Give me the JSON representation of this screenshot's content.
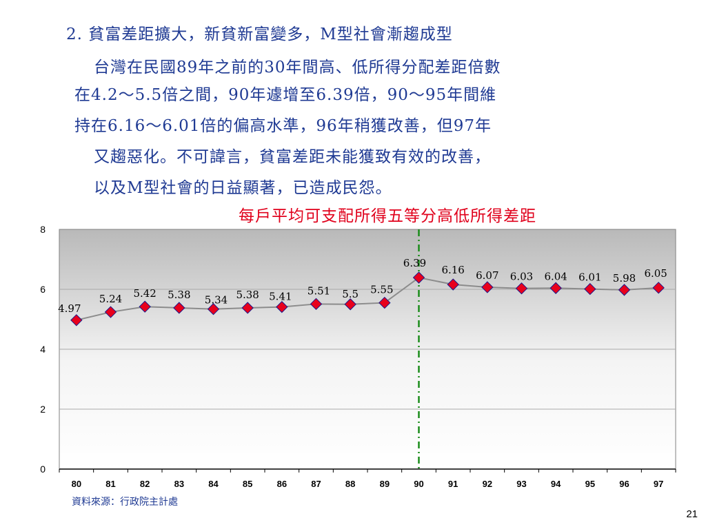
{
  "heading": {
    "line1": "2. 貧富差距擴大，新貧新富變多，M型社會漸趨成型",
    "line2": "台灣在民國89年之前的30年間高、低所得分配差距倍數",
    "line3": "在4.2～5.5倍之間，90年遽增至6.39倍，90～95年間維",
    "line4": "持在6.16～6.01倍的偏高水準，96年稍獲改善，但97年",
    "line5": "又趨惡化。不可諱言，貧富差距未能獲致有效的改善，",
    "line6": "以及M型社會的日益顯著，已造成民怨。"
  },
  "chart_data": {
    "type": "line",
    "title": "每戶平均可支配所得五等分高低所得差距",
    "categories": [
      "80",
      "81",
      "82",
      "83",
      "84",
      "85",
      "86",
      "87",
      "88",
      "89",
      "90",
      "91",
      "92",
      "93",
      "94",
      "95",
      "96",
      "97"
    ],
    "series": [
      {
        "values": [
          4.97,
          5.24,
          5.42,
          5.38,
          5.34,
          5.38,
          5.41,
          5.51,
          5.5,
          5.55,
          6.39,
          6.16,
          6.07,
          6.03,
          6.04,
          6.01,
          5.98,
          6.05
        ],
        "labels": [
          "4.97",
          "5.24",
          "5.42",
          "5.38",
          "5.34",
          "5.38",
          "5.41",
          "5.51",
          "5.5",
          "5.55",
          "6.39",
          "6.16",
          "6.07",
          "6.03",
          "6.04",
          "6.01",
          "5.98",
          "6.05"
        ]
      }
    ],
    "ylim": [
      0,
      8
    ],
    "yticks": [
      "0",
      "2",
      "4",
      "6",
      "8"
    ],
    "grid": true,
    "reference_line_at": "90",
    "colors": {
      "line": "#8c8c8c",
      "marker_fill": "#e8001c",
      "marker_stroke": "#1a1a8c",
      "reference": "#1a8c1a"
    }
  },
  "source_note": "資料來源：行政院主計處",
  "page_number": "21"
}
